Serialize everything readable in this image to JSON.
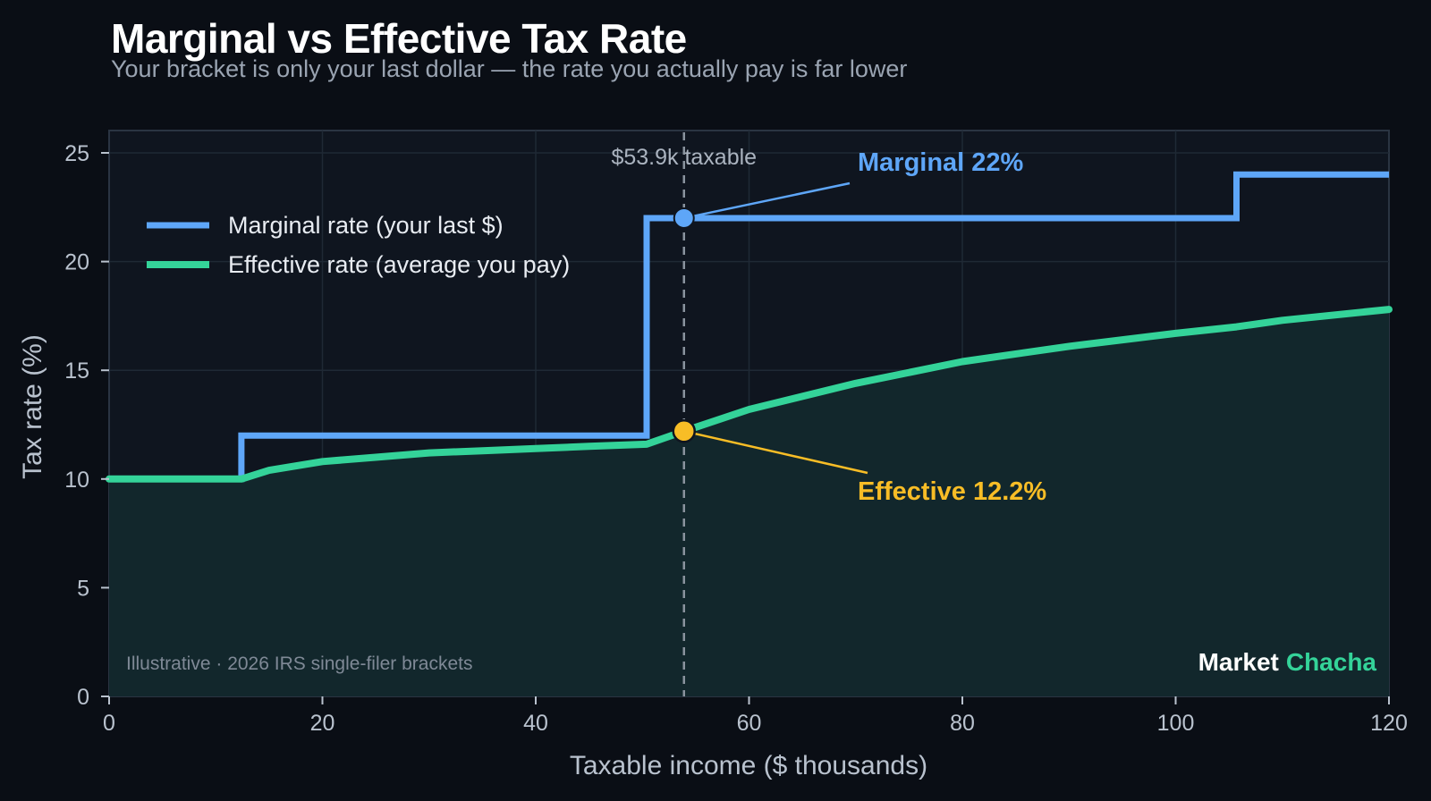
{
  "header": {
    "title": "Marginal vs Effective Tax Rate",
    "subtitle": "Your bracket is only your last dollar — the rate you actually pay is far lower"
  },
  "chart_data": {
    "type": "line",
    "title": "Marginal vs Effective Tax Rate",
    "subtitle": "Your bracket is only your last dollar — the rate you actually pay is far lower",
    "xlabel": "Taxable income ($ thousands)",
    "ylabel": "Tax rate (%)",
    "xlim": [
      0,
      120
    ],
    "ylim": [
      0,
      26
    ],
    "xticks": [
      0,
      20,
      40,
      60,
      80,
      100,
      120
    ],
    "yticks": [
      0,
      5,
      10,
      15,
      20,
      25
    ],
    "grid": true,
    "legend_position": "top-left",
    "series": [
      {
        "name": "Marginal rate (your last $)",
        "style": "step",
        "color": "#5ea6f8",
        "x": [
          0,
          12.4,
          12.4,
          50.4,
          50.4,
          105.7,
          105.7,
          120
        ],
        "y": [
          10,
          10,
          12,
          12,
          22,
          22,
          24,
          24
        ]
      },
      {
        "name": "Effective rate (average you pay)",
        "style": "line",
        "color": "#34d399",
        "fill": true,
        "x": [
          0,
          12.4,
          15,
          20,
          25,
          30,
          35,
          40,
          45,
          50.4,
          53.9,
          60,
          70,
          80,
          90,
          100,
          105.7,
          110,
          120
        ],
        "y": [
          10,
          10,
          10.4,
          10.8,
          11.0,
          11.2,
          11.3,
          11.4,
          11.5,
          11.6,
          12.2,
          13.2,
          14.4,
          15.4,
          16.1,
          16.7,
          17.0,
          17.3,
          17.8
        ]
      }
    ],
    "reference_line": {
      "x": 53.9,
      "label": "$53.9k taxable"
    },
    "annotations": [
      {
        "text": "Marginal 22%",
        "point": [
          53.9,
          22
        ],
        "color": "#5ea6f8"
      },
      {
        "text": "Effective 12.2%",
        "point": [
          53.9,
          12.2
        ],
        "color": "#f8bd26"
      }
    ],
    "footnote": "Illustrative · 2026 IRS single-filer brackets",
    "branding": [
      "Market",
      "Chacha"
    ]
  }
}
